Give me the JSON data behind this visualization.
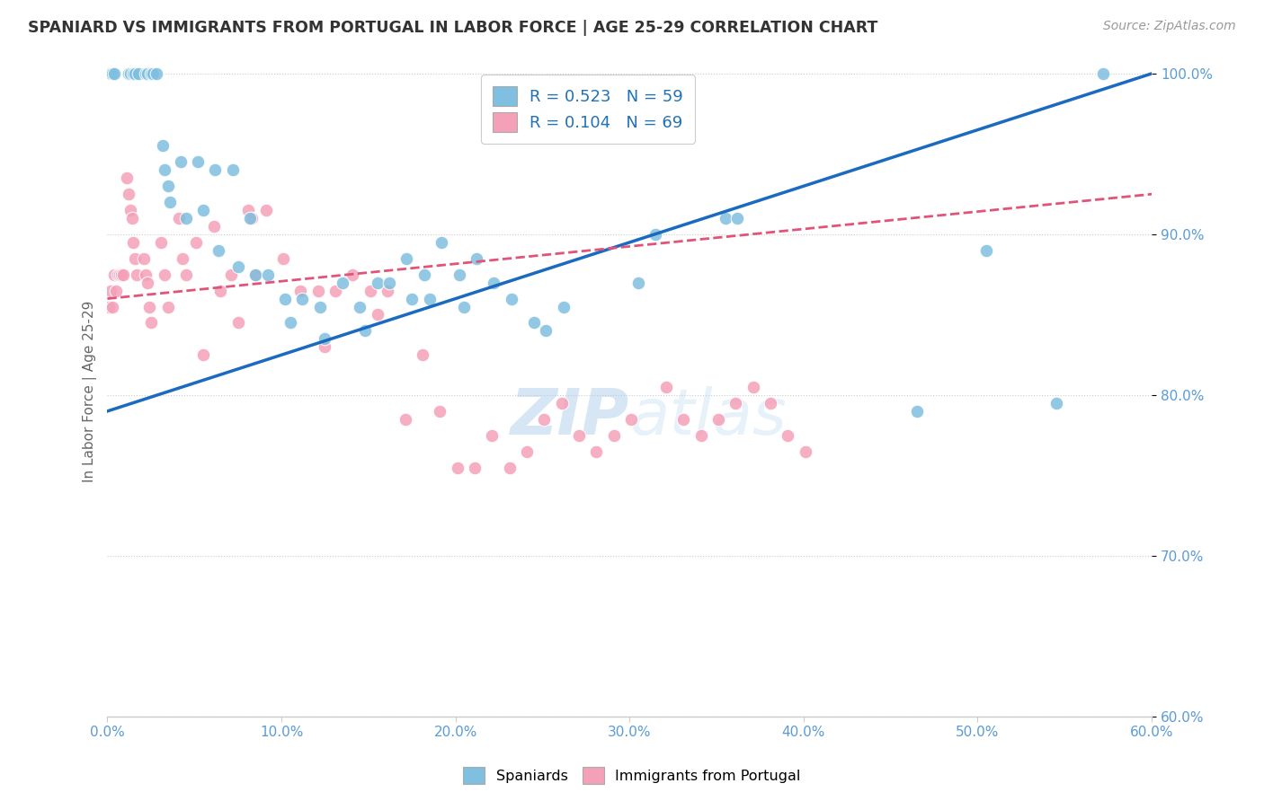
{
  "title": "SPANIARD VS IMMIGRANTS FROM PORTUGAL IN LABOR FORCE | AGE 25-29 CORRELATION CHART",
  "source": "Source: ZipAtlas.com",
  "ylabel": "In Labor Force | Age 25-29",
  "x_min": 0.0,
  "x_max": 0.6,
  "y_min": 0.6,
  "y_max": 1.005,
  "x_ticks": [
    0.0,
    0.1,
    0.2,
    0.3,
    0.4,
    0.5,
    0.6
  ],
  "x_tick_labels": [
    "0.0%",
    "10.0%",
    "20.0%",
    "30.0%",
    "40.0%",
    "50.0%",
    "60.0%"
  ],
  "y_ticks": [
    0.6,
    0.7,
    0.8,
    0.9,
    1.0
  ],
  "y_tick_labels": [
    "60.0%",
    "70.0%",
    "80.0%",
    "90.0%",
    "100.0%"
  ],
  "watermark": "ZIPatlas",
  "legend_r1": "R = 0.523",
  "legend_n1": "N = 59",
  "legend_r2": "R = 0.104",
  "legend_n2": "N = 69",
  "color_blue": "#7fbfdf",
  "color_pink": "#f4a0b8",
  "color_line_blue": "#1a6bbf",
  "color_line_pink": "#e0547a",
  "color_title": "#333333",
  "color_source": "#999999",
  "color_axis_labels": "#5b9bd5",
  "spaniards_x": [
    0.002,
    0.003,
    0.004,
    0.012,
    0.013,
    0.015,
    0.016,
    0.018,
    0.022,
    0.023,
    0.025,
    0.026,
    0.028,
    0.032,
    0.033,
    0.035,
    0.036,
    0.042,
    0.045,
    0.052,
    0.055,
    0.062,
    0.064,
    0.072,
    0.075,
    0.082,
    0.085,
    0.092,
    0.102,
    0.105,
    0.112,
    0.122,
    0.125,
    0.135,
    0.145,
    0.148,
    0.155,
    0.162,
    0.172,
    0.175,
    0.182,
    0.185,
    0.192,
    0.202,
    0.205,
    0.212,
    0.222,
    0.232,
    0.245,
    0.252,
    0.262,
    0.305,
    0.315,
    0.355,
    0.362,
    0.465,
    0.505,
    0.545,
    0.572
  ],
  "spaniards_y": [
    1.0,
    1.0,
    1.0,
    1.0,
    1.0,
    1.0,
    1.0,
    1.0,
    1.0,
    1.0,
    1.0,
    1.0,
    1.0,
    0.955,
    0.94,
    0.93,
    0.92,
    0.945,
    0.91,
    0.945,
    0.915,
    0.94,
    0.89,
    0.94,
    0.88,
    0.91,
    0.875,
    0.875,
    0.86,
    0.845,
    0.86,
    0.855,
    0.835,
    0.87,
    0.855,
    0.84,
    0.87,
    0.87,
    0.885,
    0.86,
    0.875,
    0.86,
    0.895,
    0.875,
    0.855,
    0.885,
    0.87,
    0.86,
    0.845,
    0.84,
    0.855,
    0.87,
    0.9,
    0.91,
    0.91,
    0.79,
    0.89,
    0.795,
    1.0
  ],
  "portugal_x": [
    0.001,
    0.002,
    0.003,
    0.004,
    0.005,
    0.006,
    0.007,
    0.008,
    0.009,
    0.011,
    0.012,
    0.013,
    0.014,
    0.015,
    0.016,
    0.017,
    0.021,
    0.022,
    0.023,
    0.024,
    0.025,
    0.031,
    0.033,
    0.035,
    0.041,
    0.043,
    0.045,
    0.051,
    0.055,
    0.061,
    0.065,
    0.071,
    0.075,
    0.081,
    0.083,
    0.085,
    0.091,
    0.101,
    0.111,
    0.121,
    0.125,
    0.131,
    0.141,
    0.151,
    0.155,
    0.161,
    0.171,
    0.181,
    0.191,
    0.201,
    0.211,
    0.221,
    0.231,
    0.241,
    0.251,
    0.261,
    0.271,
    0.281,
    0.291,
    0.301,
    0.321,
    0.331,
    0.341,
    0.351,
    0.361,
    0.371,
    0.381,
    0.391,
    0.401
  ],
  "portugal_y": [
    0.855,
    0.865,
    0.855,
    0.875,
    0.865,
    0.875,
    0.875,
    0.875,
    0.875,
    0.935,
    0.925,
    0.915,
    0.91,
    0.895,
    0.885,
    0.875,
    0.885,
    0.875,
    0.87,
    0.855,
    0.845,
    0.895,
    0.875,
    0.855,
    0.91,
    0.885,
    0.875,
    0.895,
    0.825,
    0.905,
    0.865,
    0.875,
    0.845,
    0.915,
    0.91,
    0.875,
    0.915,
    0.885,
    0.865,
    0.865,
    0.83,
    0.865,
    0.875,
    0.865,
    0.85,
    0.865,
    0.785,
    0.825,
    0.79,
    0.755,
    0.755,
    0.775,
    0.755,
    0.765,
    0.785,
    0.795,
    0.775,
    0.765,
    0.775,
    0.785,
    0.805,
    0.785,
    0.775,
    0.785,
    0.795,
    0.805,
    0.795,
    0.775,
    0.765
  ],
  "spaniard_trend_x0": 0.0,
  "spaniard_trend_y0": 0.79,
  "spaniard_trend_x1": 0.6,
  "spaniard_trend_y1": 1.0,
  "portugal_trend_x0": 0.0,
  "portugal_trend_y0": 0.86,
  "portugal_trend_x1": 0.6,
  "portugal_trend_y1": 0.925
}
